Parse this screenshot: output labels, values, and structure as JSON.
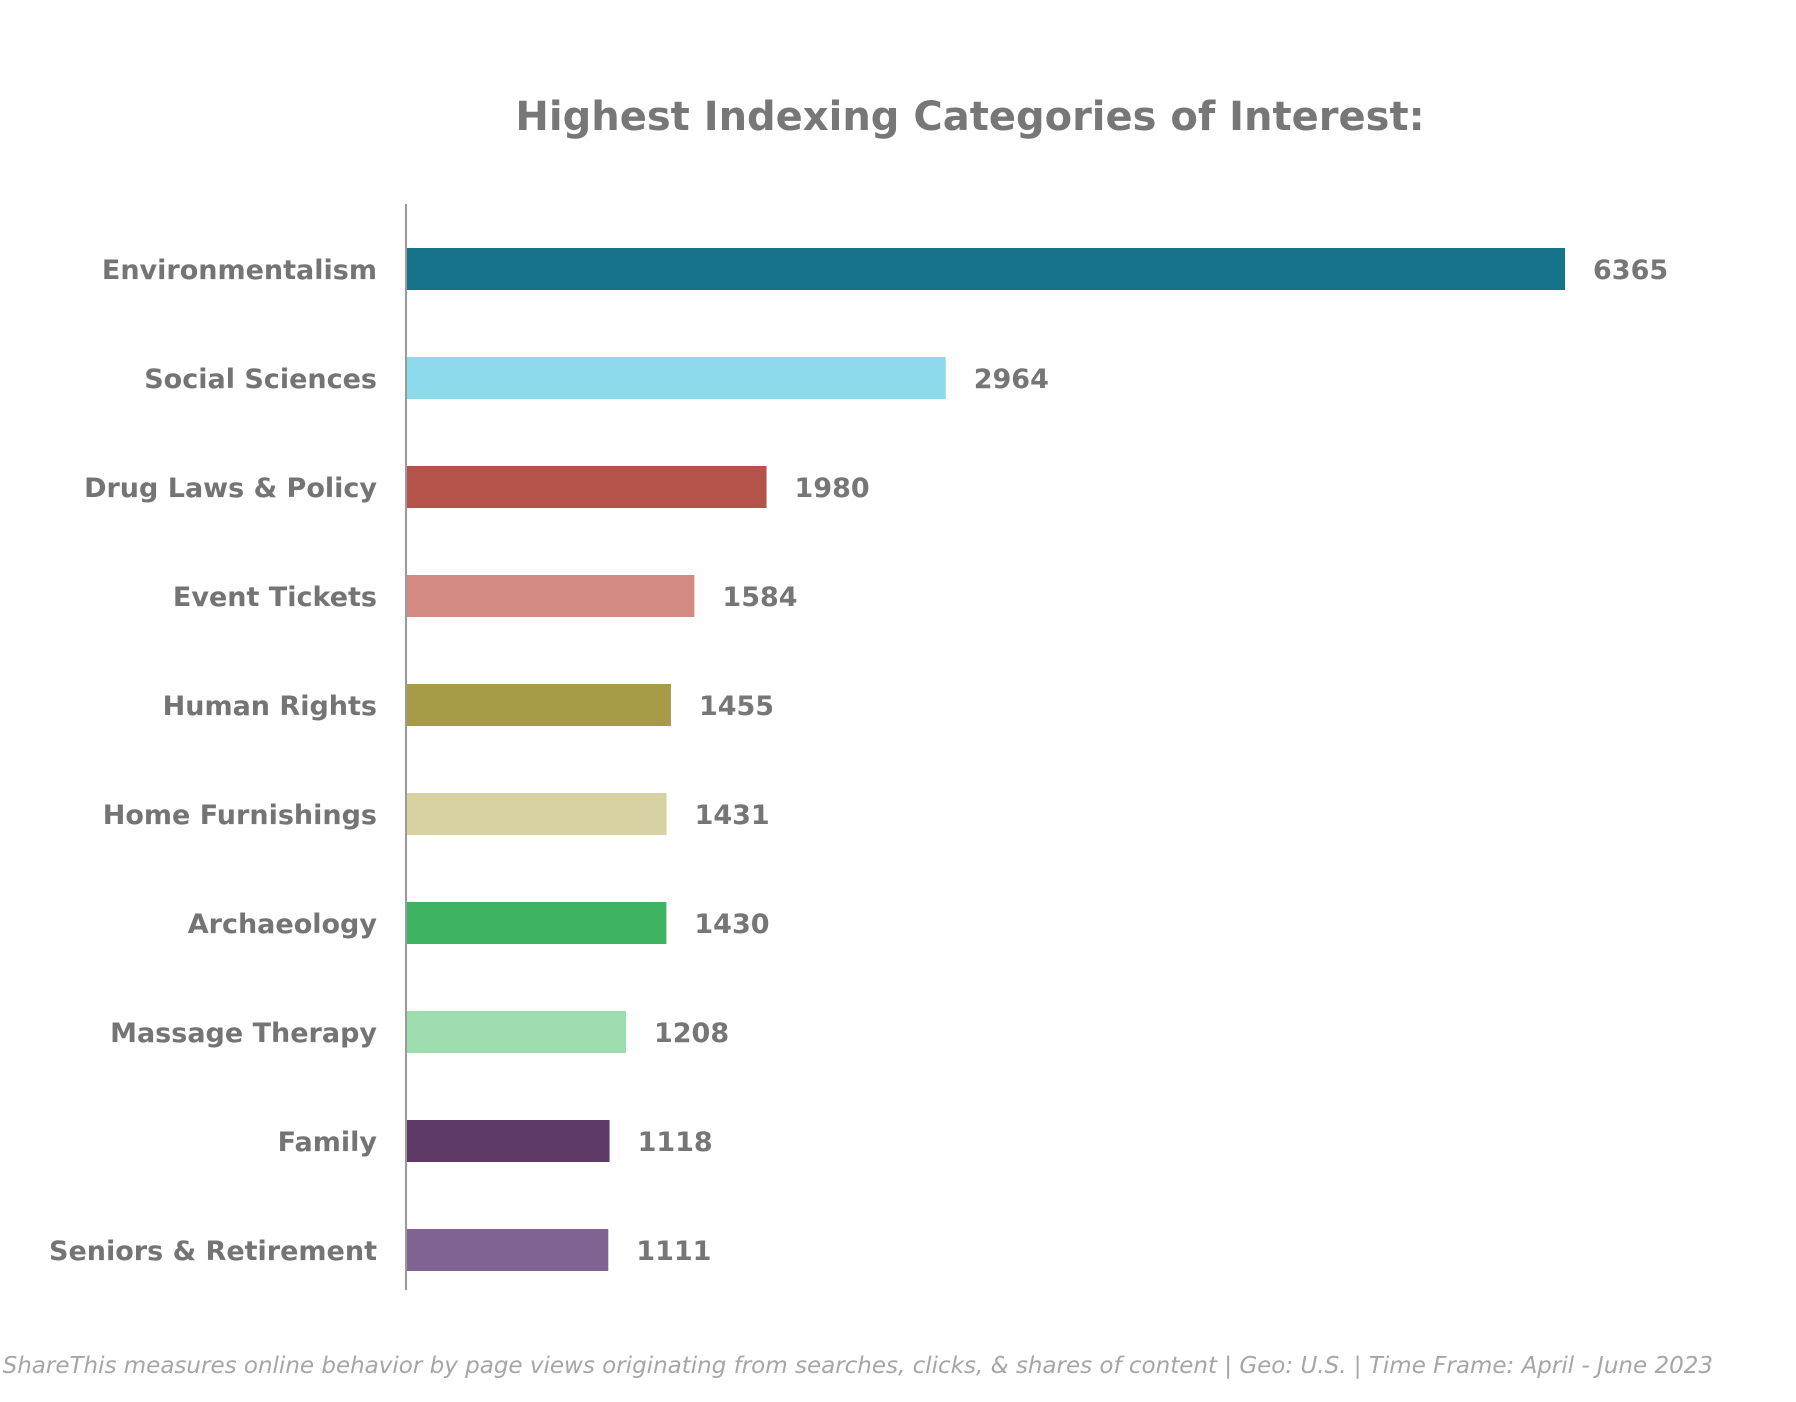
{
  "chart_data": {
    "type": "bar",
    "orientation": "horizontal",
    "title": "Highest Indexing Categories of Interest:",
    "xlabel": "",
    "ylabel": "",
    "grid": false,
    "legend": "none",
    "xlim": [
      0,
      6365
    ],
    "categories": [
      "Environmentalism",
      "Social Sciences",
      "Drug Laws & Policy",
      "Event Tickets",
      "Human Rights",
      "Home Furnishings",
      "Archaeology",
      "Massage Therapy",
      "Family",
      "Seniors & Retirement"
    ],
    "values": [
      6365,
      2964,
      1980,
      1584,
      1455,
      1431,
      1430,
      1208,
      1118,
      1111
    ],
    "colors": [
      "#16738a",
      "#8ddaed",
      "#b3534a",
      "#d48b84",
      "#a89b48",
      "#d8d1a2",
      "#3eb463",
      "#9dddb0",
      "#5e3b67",
      "#806293"
    ]
  },
  "footnote": "ShareThis measures online behavior by page views originating from searches, clicks, & shares of content | Geo: U.S. | Time Frame: April - June 2023"
}
